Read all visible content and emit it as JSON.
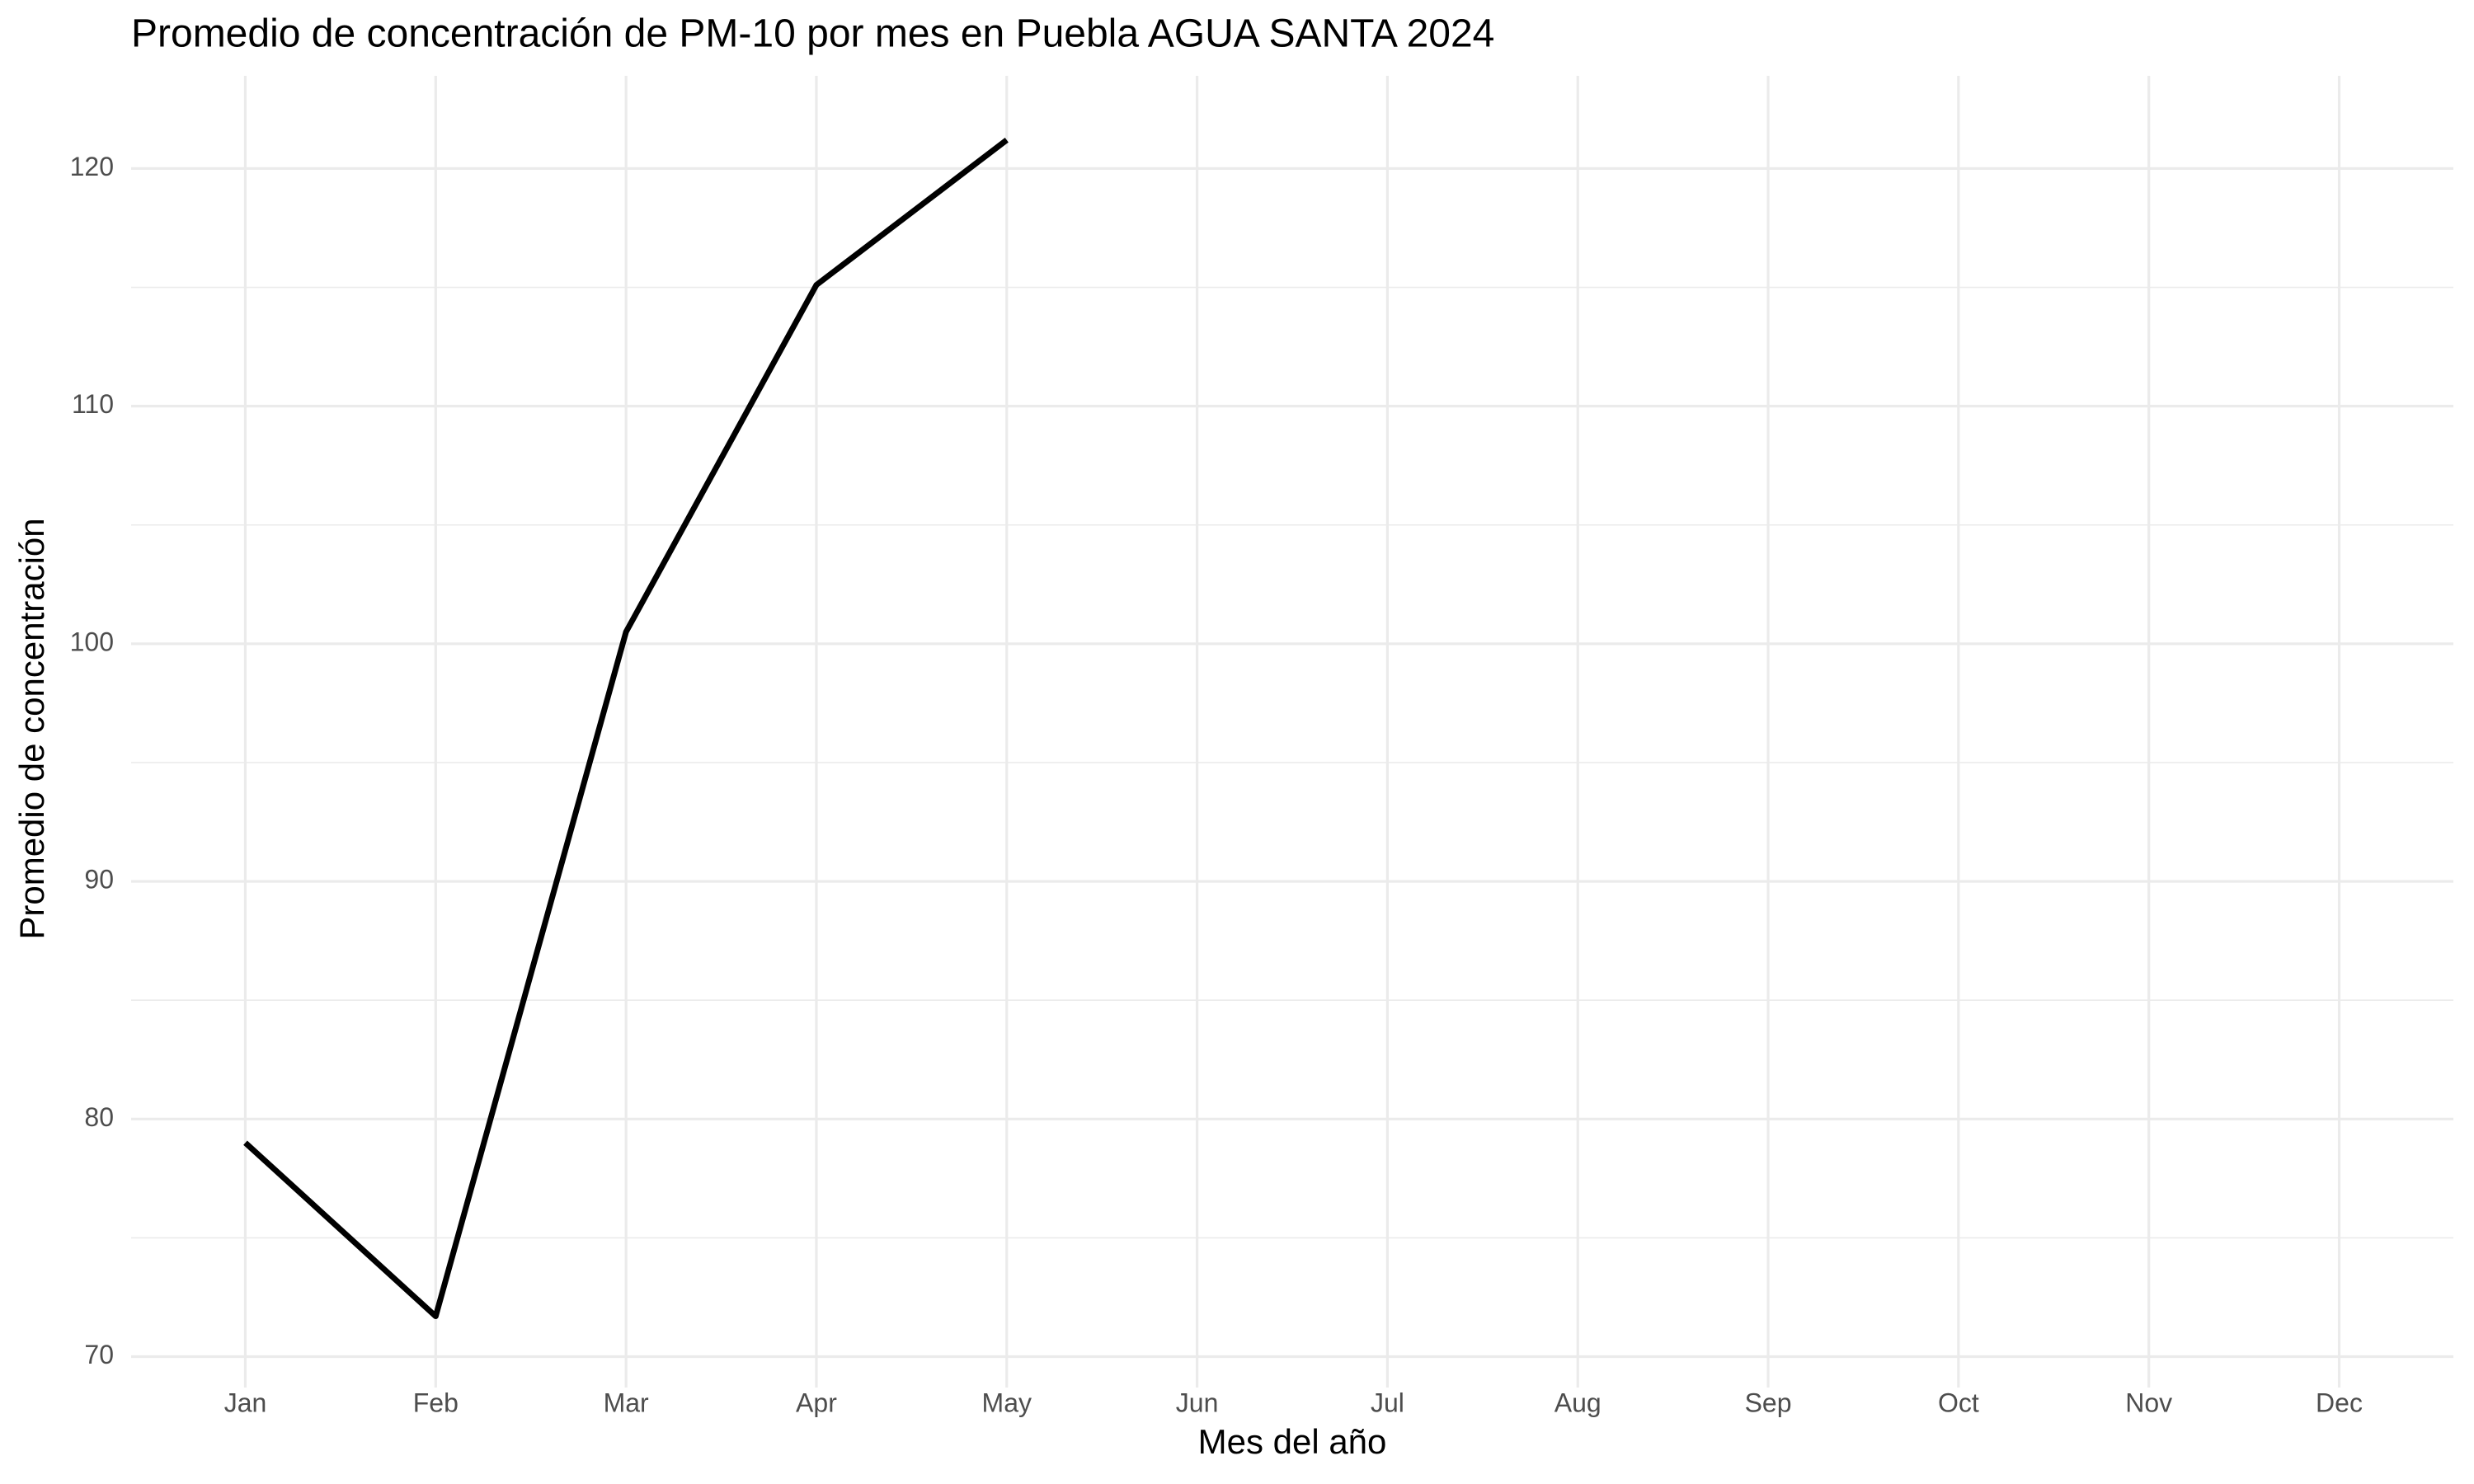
{
  "chart_data": {
    "type": "line",
    "title": "Promedio de concentración de PM-10 por mes en Puebla AGUA SANTA 2024",
    "x_label": "Mes del año",
    "y_label": "Promedio de concentración",
    "categories": [
      "Jan",
      "Feb",
      "Mar",
      "Apr",
      "May",
      "Jun",
      "Jul",
      "Aug",
      "Sep",
      "Oct",
      "Nov",
      "Dec"
    ],
    "series": [
      {
        "color": "#000000",
        "values": [
          79.0,
          71.7,
          100.5,
          115.1,
          121.2,
          null,
          null,
          null,
          null,
          null,
          null,
          null
        ]
      }
    ],
    "ylim": [
      68.7,
      123.9
    ],
    "yticks": [
      70,
      80,
      90,
      100,
      110,
      120
    ],
    "grid": true,
    "minor_grid": true
  }
}
